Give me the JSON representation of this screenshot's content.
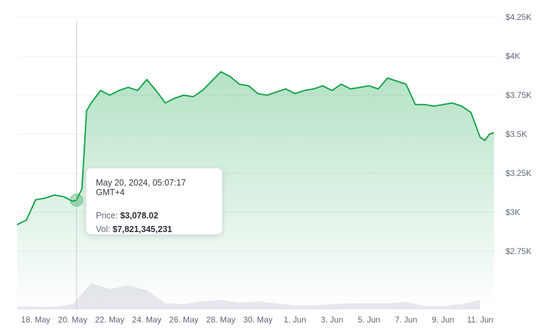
{
  "chart_data": {
    "type": "area",
    "series": [
      {
        "values": [
          [
            "2024-05-17",
            2920
          ],
          [
            "2024-05-17T12",
            2950
          ],
          [
            "2024-05-18",
            3080
          ],
          [
            "2024-05-18T12",
            3090
          ],
          [
            "2024-05-19",
            3110
          ],
          [
            "2024-05-19T12",
            3100
          ],
          [
            "2024-05-20",
            3070
          ],
          [
            "2024-05-20T05",
            3078
          ],
          [
            "2024-05-20T12",
            3150
          ],
          [
            "2024-05-20T18",
            3650
          ],
          [
            "2024-05-21",
            3700
          ],
          [
            "2024-05-21T12",
            3780
          ],
          [
            "2024-05-22",
            3750
          ],
          [
            "2024-05-22T12",
            3780
          ],
          [
            "2024-05-23",
            3800
          ],
          [
            "2024-05-23T12",
            3780
          ],
          [
            "2024-05-24",
            3850
          ],
          [
            "2024-05-24T12",
            3780
          ],
          [
            "2024-05-25",
            3700
          ],
          [
            "2024-05-25T12",
            3730
          ],
          [
            "2024-05-26",
            3750
          ],
          [
            "2024-05-26T12",
            3740
          ],
          [
            "2024-05-27",
            3780
          ],
          [
            "2024-05-27T12",
            3840
          ],
          [
            "2024-05-28",
            3900
          ],
          [
            "2024-05-28T12",
            3870
          ],
          [
            "2024-05-29",
            3820
          ],
          [
            "2024-05-29T12",
            3810
          ],
          [
            "2024-05-30",
            3760
          ],
          [
            "2024-05-30T12",
            3750
          ],
          [
            "2024-05-31",
            3770
          ],
          [
            "2024-05-31T12",
            3790
          ],
          [
            "2024-06-01",
            3760
          ],
          [
            "2024-06-01T12",
            3780
          ],
          [
            "2024-06-02",
            3790
          ],
          [
            "2024-06-02T12",
            3810
          ],
          [
            "2024-06-03",
            3780
          ],
          [
            "2024-06-03T12",
            3820
          ],
          [
            "2024-06-04",
            3790
          ],
          [
            "2024-06-04T12",
            3800
          ],
          [
            "2024-06-05",
            3810
          ],
          [
            "2024-06-05T12",
            3790
          ],
          [
            "2024-06-06",
            3860
          ],
          [
            "2024-06-06T12",
            3840
          ],
          [
            "2024-06-07",
            3820
          ],
          [
            "2024-06-07T12",
            3690
          ],
          [
            "2024-06-08",
            3690
          ],
          [
            "2024-06-08T12",
            3680
          ],
          [
            "2024-06-09",
            3690
          ],
          [
            "2024-06-09T12",
            3700
          ],
          [
            "2024-06-10",
            3680
          ],
          [
            "2024-06-10T12",
            3640
          ],
          [
            "2024-06-11",
            3480
          ],
          [
            "2024-06-11T06",
            3460
          ],
          [
            "2024-06-11T12",
            3500
          ],
          [
            "2024-06-11T18",
            3510
          ]
        ],
        "color": "#16a34a"
      },
      {
        "type": "volume",
        "values": [
          [
            "2024-05-17",
            5
          ],
          [
            "2024-05-18",
            4
          ],
          [
            "2024-05-19",
            4
          ],
          [
            "2024-05-20",
            8
          ],
          [
            "2024-05-21",
            38
          ],
          [
            "2024-05-22",
            30
          ],
          [
            "2024-05-23",
            35
          ],
          [
            "2024-05-24",
            28
          ],
          [
            "2024-05-25",
            9
          ],
          [
            "2024-05-26",
            8
          ],
          [
            "2024-05-27",
            12
          ],
          [
            "2024-05-28",
            14
          ],
          [
            "2024-05-29",
            10
          ],
          [
            "2024-05-30",
            12
          ],
          [
            "2024-05-31",
            9
          ],
          [
            "2024-06-01",
            6
          ],
          [
            "2024-06-02",
            6
          ],
          [
            "2024-06-03",
            8
          ],
          [
            "2024-06-04",
            9
          ],
          [
            "2024-06-05",
            9
          ],
          [
            "2024-06-06",
            9
          ],
          [
            "2024-06-07",
            11
          ],
          [
            "2024-06-08",
            5
          ],
          [
            "2024-06-09",
            5
          ],
          [
            "2024-06-10",
            8
          ],
          [
            "2024-06-11",
            14
          ]
        ]
      }
    ],
    "x_ticks": [
      "18. May",
      "20. May",
      "22. May",
      "24. May",
      "26. May",
      "28. May",
      "30. May",
      "1. Jun",
      "3. Jun",
      "5. Jun",
      "7. Jun",
      "9. Jun",
      "11. Jun"
    ],
    "y_ticks": [
      "$4.25K",
      "$4K",
      "$3.75K",
      "$3.5K",
      "$3.25K",
      "$3K",
      "$2.75K"
    ],
    "ylim": [
      2750,
      4250
    ],
    "grid": true
  },
  "tooltip": {
    "date": "May 20, 2024, 05:07:17 GMT+4",
    "price_label": "Price: ",
    "price_value": "$3,078.02",
    "vol_label": "Vol: ",
    "vol_value": "$7,821,345,231"
  }
}
